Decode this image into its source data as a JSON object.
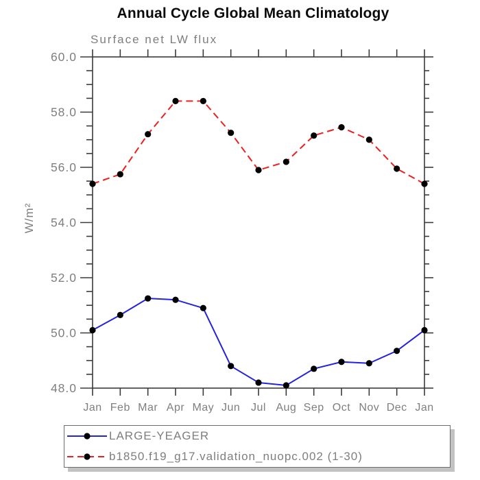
{
  "title": "Annual Cycle Global Mean Climatology",
  "subtitle": "Surface net LW flux",
  "colors": {
    "background": "#ffffff",
    "axis": "#3a3a3a",
    "label_gray": "#7e7e7e",
    "marker": "#000000",
    "legend_shadow": "#c2c2c2",
    "series_blue": "#2222e0",
    "series_red": "#ee1e1e"
  },
  "chart_data": {
    "type": "line",
    "title": "Annual Cycle Global Mean Climatology",
    "subtitle": "Surface net LW flux",
    "xlabel": "",
    "ylabel": "W/m²",
    "categories": [
      "Jan",
      "Feb",
      "Mar",
      "Apr",
      "May",
      "Jun",
      "Jul",
      "Aug",
      "Sep",
      "Oct",
      "Nov",
      "Dec",
      "Jan"
    ],
    "ylim": [
      48.0,
      60.0
    ],
    "yticks": [
      {
        "value": 48.0,
        "label": "48.0"
      },
      {
        "value": 50.0,
        "label": "50.0"
      },
      {
        "value": 52.0,
        "label": "52.0"
      },
      {
        "value": 54.0,
        "label": "54.0"
      },
      {
        "value": 56.0,
        "label": "56.0"
      },
      {
        "value": 58.0,
        "label": "58.0"
      },
      {
        "value": 60.0,
        "label": "60.0"
      }
    ],
    "ytick_minor_step": 0.5,
    "grid": false,
    "legend_position": "bottom-left",
    "series": [
      {
        "name": "LARGE-YEAGER",
        "color": "#2222e0",
        "style": "solid",
        "marker": "circle",
        "marker_color": "#000000",
        "values": [
          50.1,
          50.65,
          51.25,
          51.2,
          50.9,
          48.8,
          48.2,
          48.1,
          48.7,
          48.95,
          48.9,
          49.35,
          50.1
        ]
      },
      {
        "name": "b1850.f19_g17.validation_nuopc.002 (1-30)",
        "color": "#ee1e1e",
        "style": "dashed",
        "marker": "circle",
        "marker_color": "#000000",
        "values": [
          55.4,
          55.75,
          57.2,
          58.4,
          58.4,
          57.25,
          55.9,
          56.2,
          57.15,
          57.45,
          57.0,
          55.95,
          55.4
        ]
      }
    ]
  },
  "legend": {
    "items": [
      {
        "label": "LARGE-YEAGER"
      },
      {
        "label": "b1850.f19_g17.validation_nuopc.002 (1-30)"
      }
    ]
  }
}
